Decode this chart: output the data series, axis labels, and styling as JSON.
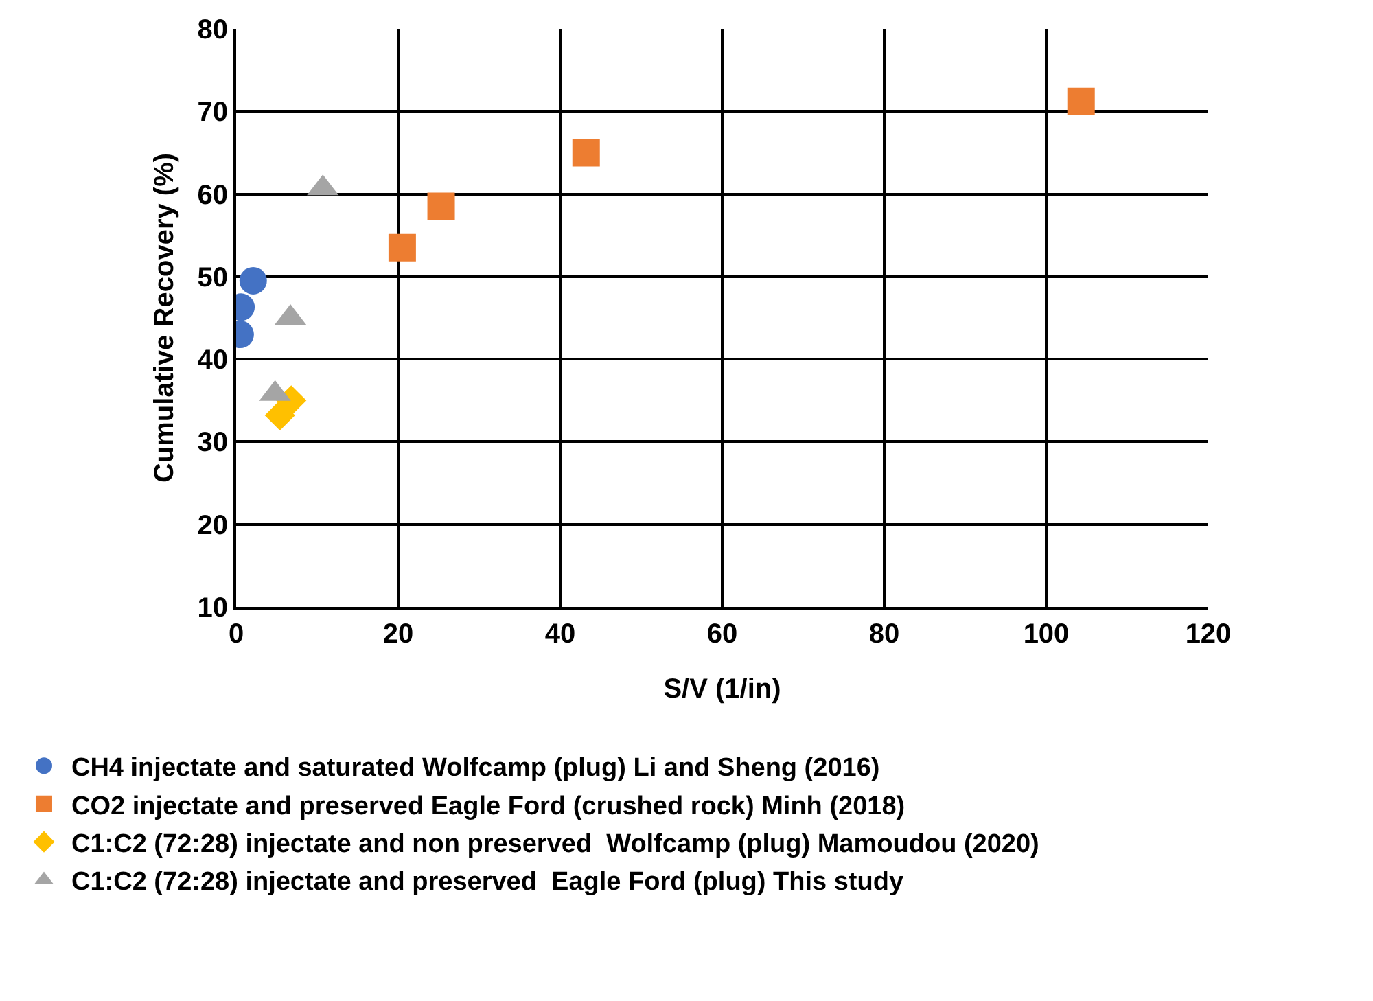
{
  "chart_data": {
    "type": "scatter",
    "xlabel": "S/V (1/in)",
    "ylabel": "Cumulative Recovery (%)",
    "xlim": [
      0,
      120
    ],
    "xticks": [
      0,
      20,
      40,
      60,
      80,
      100,
      120
    ],
    "ylim": [
      10,
      80
    ],
    "yticks": [
      10,
      20,
      30,
      40,
      50,
      60,
      70,
      80
    ],
    "grid": true,
    "legend": "bottom",
    "series": [
      {
        "name": "CH4 injectate and saturated Wolfcamp (plug) Li and Sheng (2016)",
        "color": "#4472c4",
        "marker": "circle",
        "x": [
          0.5,
          0.6,
          2.1
        ],
        "values": [
          43,
          46.3,
          49.5
        ]
      },
      {
        "name": "CO2 injectate and preserved Eagle Ford (crushed rock) Minh (2018)",
        "color": "#ed7d31",
        "marker": "square",
        "x": [
          20.5,
          25.3,
          43.2,
          104.3
        ],
        "values": [
          53.5,
          58.5,
          65,
          71.2
        ]
      },
      {
        "name": "C1:C2 (72:28) injectate and non preserved  Wolfcamp (plug) Mamoudou (2020)",
        "color": "#ffc000",
        "marker": "diamond",
        "x": [
          5.4,
          6.8
        ],
        "values": [
          33.2,
          35
        ]
      },
      {
        "name": "C1:C2 (72:28) injectate and preserved  Eagle Ford (plug) This study",
        "color": "#a5a5a5",
        "marker": "triangle",
        "x": [
          4.8,
          6.7,
          10.7
        ],
        "values": [
          35.8,
          45,
          60.7
        ]
      }
    ]
  }
}
